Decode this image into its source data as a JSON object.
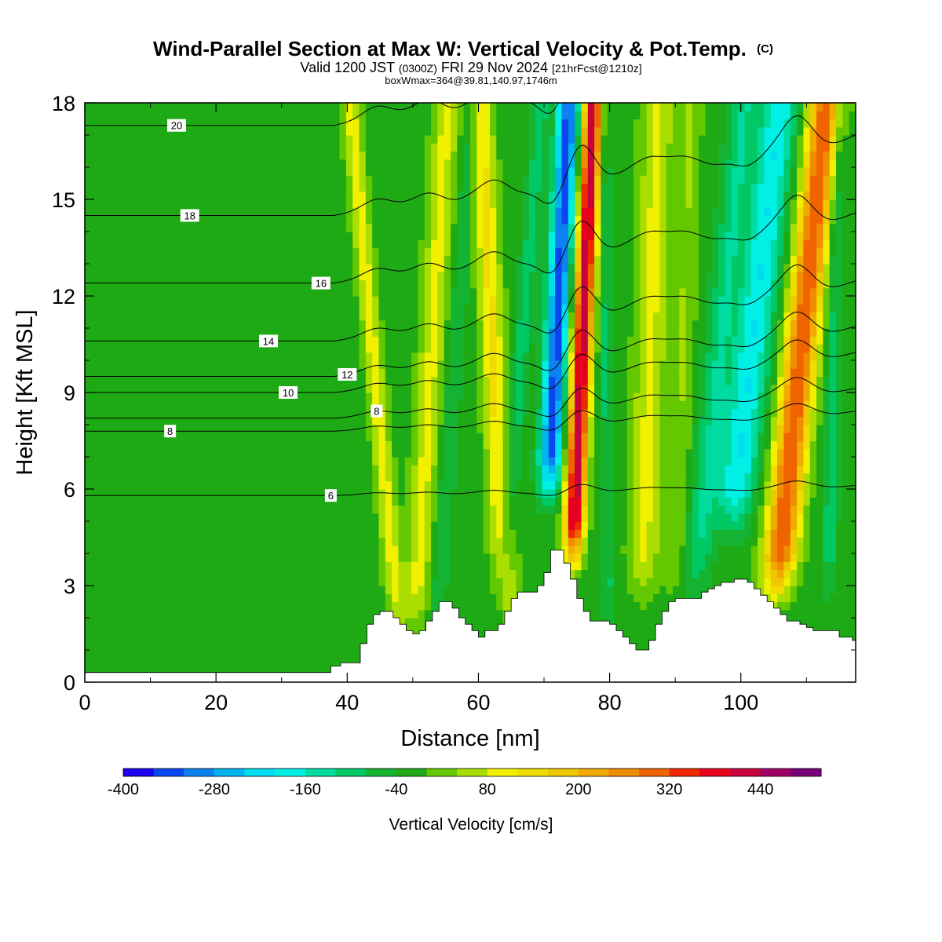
{
  "header": {
    "title": "Wind-Parallel Section at Max W: Vertical Velocity & Pot.Temp.",
    "title_mark": "(C)",
    "valid_prefix": "Valid 1200 JST",
    "valid_utc": "(0300Z)",
    "valid_date": "FRI 29 Nov 2024",
    "valid_fcst": "[21hrFcst@1210z]",
    "boxw": "boxWmax=364@39.81,140.97,1746m"
  },
  "chart_data": {
    "type": "heatmap",
    "xlabel": "Distance [nm]",
    "ylabel": "Height [Kft MSL]",
    "xlim": [
      0,
      117.5
    ],
    "ylim": [
      0,
      18
    ],
    "xticks": [
      0,
      20,
      40,
      60,
      80,
      100
    ],
    "yticks": [
      0,
      3,
      6,
      9,
      12,
      15,
      18
    ],
    "grid": false,
    "colorbar": {
      "label": "Vertical Velocity [cm/s]",
      "min": -400,
      "max": 520,
      "step": 40,
      "tick_labels": [
        "-400",
        "-280",
        "-160",
        "-40",
        "80",
        "200",
        "320",
        "440"
      ],
      "tick_values": [
        -400,
        -280,
        -160,
        -40,
        80,
        200,
        320,
        440
      ],
      "colors": [
        "#1e00f0",
        "#0a46f0",
        "#0a82f0",
        "#00b4f0",
        "#00dcf0",
        "#00f0e6",
        "#00dca0",
        "#00c864",
        "#14b432",
        "#1eaa14",
        "#64c800",
        "#aade00",
        "#f0f000",
        "#f0dc00",
        "#f0c800",
        "#f0aa00",
        "#f08c00",
        "#f06400",
        "#f02800",
        "#e6001e",
        "#c8003c",
        "#a00064",
        "#780078"
      ]
    },
    "field": {
      "name": "Vertical Velocity",
      "background_value": -20,
      "bands": [
        {
          "x": 44.5,
          "slope": -0.45,
          "amplitude": 120,
          "width": 1.4,
          "y_from": 2,
          "y_to": 18
        },
        {
          "x": 52.5,
          "slope": 0.3,
          "amplitude": 110,
          "width": 2.0,
          "y_from": 2,
          "y_to": 18
        },
        {
          "x": 56.0,
          "slope": 0.35,
          "amplitude": -60,
          "width": 1.3,
          "y_from": 2,
          "y_to": 18
        },
        {
          "x": 62.5,
          "slope": -0.25,
          "amplitude": 150,
          "width": 1.8,
          "y_from": 2,
          "y_to": 18
        },
        {
          "x": 66.0,
          "slope": 0.4,
          "amplitude": -80,
          "width": 1.3,
          "y_from": 2,
          "y_to": 18
        },
        {
          "x": 71.5,
          "slope": 0.25,
          "amplitude": -320,
          "width": 1.7,
          "y_from": 6,
          "y_to": 18
        },
        {
          "x": 75.5,
          "slope": 0.22,
          "amplitude": 450,
          "width": 1.5,
          "y_from": 4,
          "y_to": 18
        },
        {
          "x": 79.5,
          "slope": -0.05,
          "amplitude": -70,
          "width": 1.0,
          "y_from": 2,
          "y_to": 18
        },
        {
          "x": 86.0,
          "slope": 0.15,
          "amplitude": 110,
          "width": 2.4,
          "y_from": 3,
          "y_to": 18
        },
        {
          "x": 91.0,
          "slope": 0.15,
          "amplitude": 60,
          "width": 1.8,
          "y_from": 3,
          "y_to": 18
        },
        {
          "x": 96.0,
          "slope": 0.5,
          "amplitude": -100,
          "width": 2.2,
          "y_from": 3,
          "y_to": 18
        },
        {
          "x": 101.0,
          "slope": 0.55,
          "amplitude": -180,
          "width": 2.8,
          "y_from": 5,
          "y_to": 18
        },
        {
          "x": 108.5,
          "slope": 0.5,
          "amplitude": 340,
          "width": 2.5,
          "y_from": 3,
          "y_to": 18
        },
        {
          "x": 114.0,
          "slope": 0.1,
          "amplitude": -80,
          "width": 1.2,
          "y_from": 3,
          "y_to": 18
        }
      ]
    },
    "terrain": {
      "x": [
        0,
        35,
        37.5,
        39,
        40.5,
        42,
        43,
        44,
        45,
        46,
        47,
        48,
        49,
        50,
        51,
        52,
        53,
        54,
        55,
        56,
        57,
        58,
        59,
        60,
        61,
        62,
        63,
        64,
        65,
        66,
        67,
        68,
        69,
        70,
        71,
        72,
        73,
        74,
        75,
        76,
        77,
        78,
        79,
        80,
        81,
        82,
        83,
        84,
        85,
        86,
        87,
        88,
        89,
        90,
        91,
        92,
        93,
        94,
        95,
        96,
        97,
        98,
        99,
        100,
        101,
        102,
        103,
        104,
        105,
        106,
        107,
        108,
        109,
        110,
        111,
        112,
        113,
        114,
        115,
        116,
        117,
        117.5
      ],
      "y": [
        0.3,
        0.3,
        0.5,
        0.6,
        0.6,
        1.2,
        1.8,
        2.1,
        2.2,
        2.2,
        2.0,
        1.8,
        1.6,
        1.5,
        1.6,
        1.9,
        2.2,
        2.5,
        2.5,
        2.3,
        2.0,
        1.8,
        1.6,
        1.4,
        1.6,
        1.6,
        1.8,
        2.2,
        2.6,
        2.8,
        2.8,
        2.8,
        3.0,
        3.4,
        4.1,
        4.1,
        3.7,
        3.2,
        2.6,
        2.2,
        1.9,
        1.9,
        1.9,
        1.8,
        1.6,
        1.4,
        1.2,
        1.0,
        1.0,
        1.3,
        1.8,
        2.2,
        2.5,
        2.6,
        2.6,
        2.6,
        2.6,
        2.8,
        2.9,
        3.0,
        3.1,
        3.1,
        3.2,
        3.2,
        3.1,
        2.9,
        2.7,
        2.5,
        2.3,
        2.1,
        1.9,
        1.9,
        1.8,
        1.7,
        1.6,
        1.6,
        1.6,
        1.6,
        1.4,
        1.4,
        1.3,
        1.3
      ]
    },
    "isentropes": [
      {
        "base": 5.8,
        "label": "6",
        "label_x": 37.5,
        "amp": 0.2
      },
      {
        "base": 7.8,
        "label": "8",
        "label_x": 13,
        "amp": 0.35
      },
      {
        "base": 8.2,
        "label": "8",
        "label_x": 44.5,
        "amp": 0.5
      },
      {
        "base": 9.0,
        "label": "10",
        "label_x": 31,
        "amp": 0.6
      },
      {
        "base": 9.5,
        "label": "12",
        "label_x": 40,
        "amp": 0.7
      },
      {
        "base": 10.6,
        "label": "14",
        "label_x": 28,
        "amp": 0.8
      },
      {
        "base": 12.4,
        "label": "16",
        "label_x": 36,
        "amp": 0.9
      },
      {
        "base": 14.5,
        "label": "18",
        "label_x": 16,
        "amp": 1.0
      },
      {
        "base": 17.3,
        "label": "20",
        "label_x": 14,
        "amp": 1.2
      }
    ],
    "contour_labels": [
      "6",
      "8",
      "10",
      "12",
      "14",
      "16",
      "18",
      "20"
    ]
  }
}
